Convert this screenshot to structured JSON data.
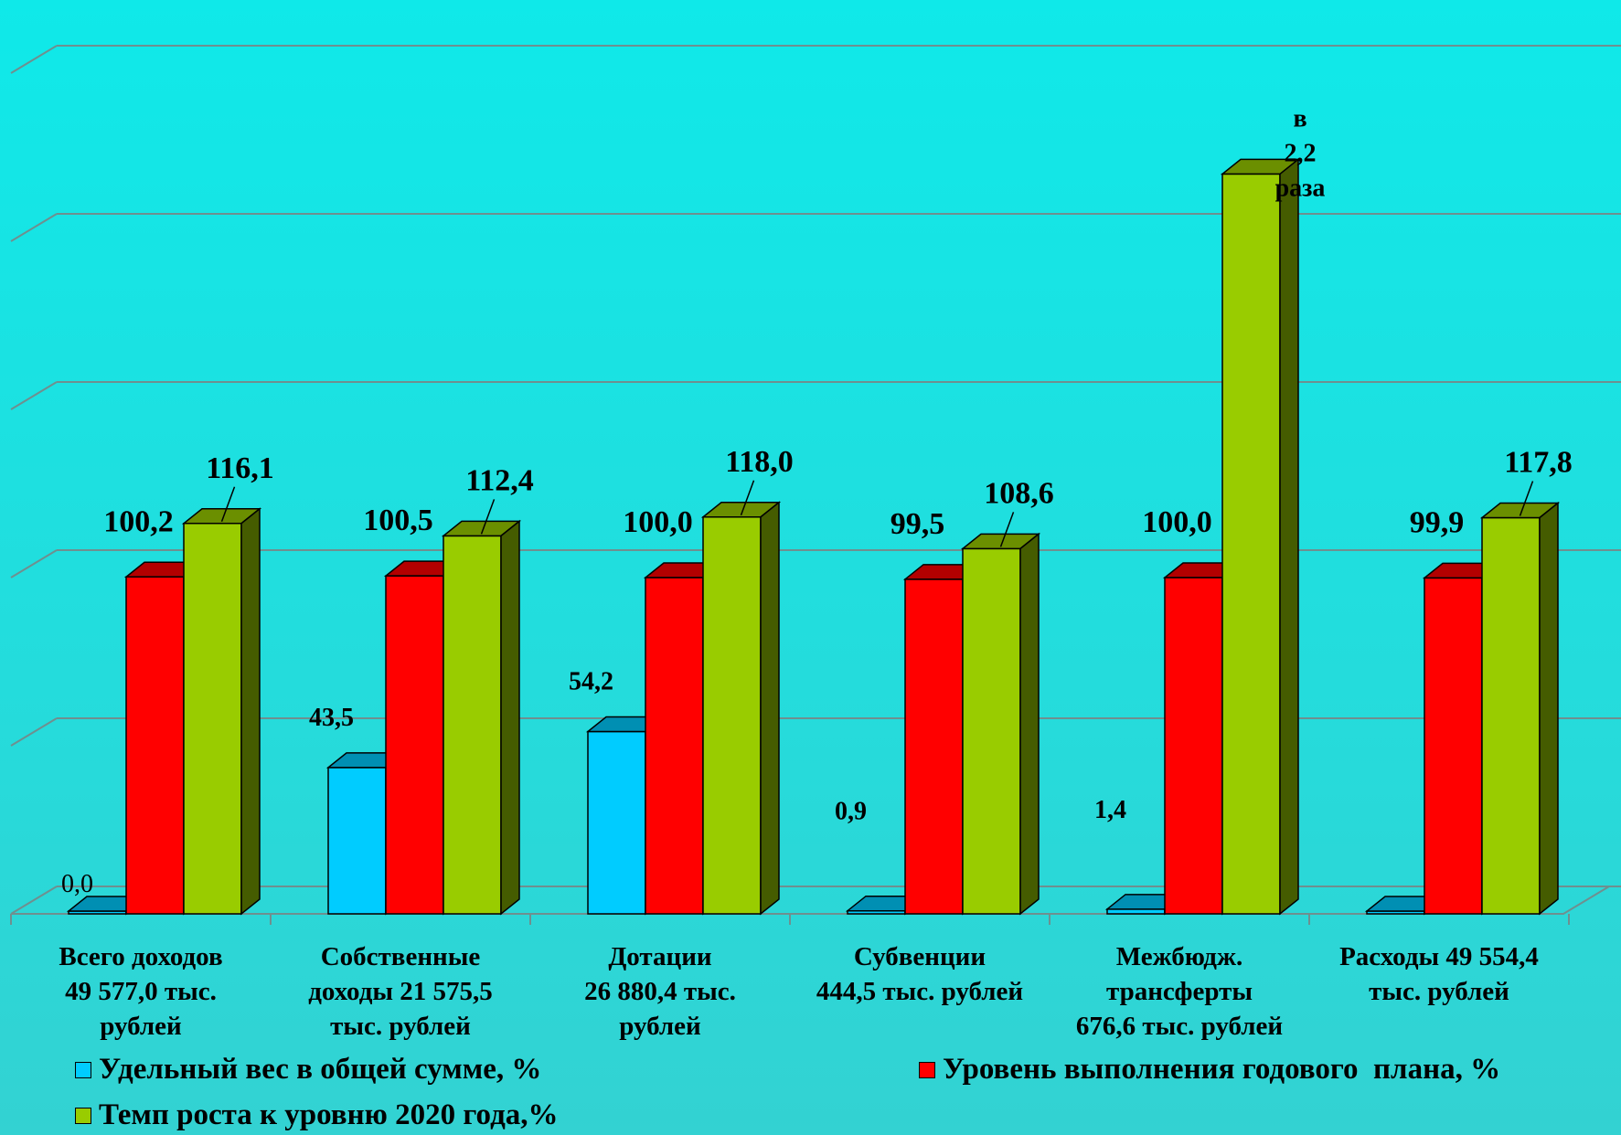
{
  "chart_data": {
    "type": "bar",
    "categories": [
      [
        "Всего доходов",
        "49 577,0 тыс.",
        "рублей"
      ],
      [
        "Собственные",
        "доходы 21 575,5",
        "тыс. рублей"
      ],
      [
        "Дотации",
        "26 880,4 тыс.",
        "рублей"
      ],
      [
        "Субвенции",
        "444,5 тыс. рублей"
      ],
      [
        "Межбюдж.",
        "трансферты",
        "676,6 тыс. рублей"
      ],
      [
        "Расходы 49 554,4",
        "тыс. рублей"
      ]
    ],
    "series": [
      {
        "name": "Удельный вес в общей сумме, %",
        "color": "#00ccff",
        "values": [
          0.0,
          43.5,
          54.2,
          0.9,
          1.4,
          0.0
        ],
        "labels": [
          "0,0",
          "43,5",
          "54,2",
          "0,9",
          "1,4",
          ""
        ]
      },
      {
        "name": "Уровень выполнения годового  плана, %",
        "color": "#ff0000",
        "values": [
          100.2,
          100.5,
          100.0,
          99.5,
          100.0,
          99.9
        ],
        "labels": [
          "100,2",
          "100,5",
          "100,0",
          "99,5",
          "100,0",
          "99,9"
        ]
      },
      {
        "name": "Темп роста к уровню 2020 года,%",
        "color": "#99cc00",
        "values": [
          116.1,
          112.4,
          118.0,
          108.6,
          220.0,
          117.8
        ],
        "labels": [
          "116,1",
          "112,4",
          "118,0",
          "108,6",
          "",
          "117,8"
        ]
      }
    ],
    "special_label": [
      "в",
      "2,2",
      "раза"
    ],
    "ylim": [
      0,
      250
    ],
    "grid": true,
    "legend": "bottom"
  }
}
